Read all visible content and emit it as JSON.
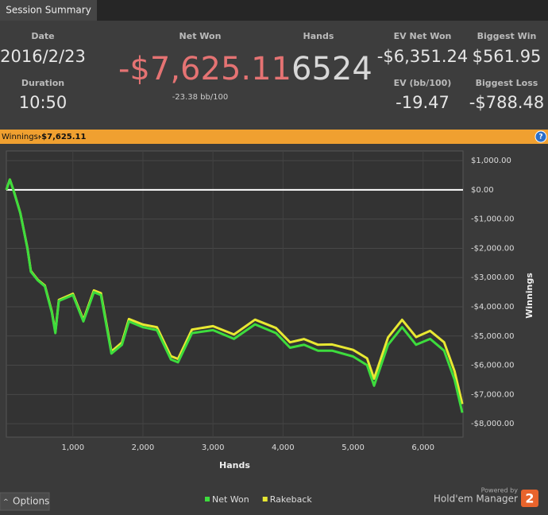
{
  "tab": "Session Summary",
  "stats": {
    "date_label": "Date",
    "date": "2016/2/23",
    "duration_label": "Duration",
    "duration": "10:50",
    "net_won_label": "Net Won",
    "net_won": "-$7,625.11",
    "net_won_bb": "-23.38 bb/100",
    "hands_label": "Hands",
    "hands": "6524",
    "ev_net_won_label": "EV Net Won",
    "ev_net_won": "-$6,351.24",
    "biggest_win_label": "Biggest Win",
    "biggest_win": "$561.95",
    "ev_bb_label": "EV (bb/100)",
    "ev_bb": "-19.47",
    "biggest_loss_label": "Biggest Loss",
    "biggest_loss": "-$788.48"
  },
  "winnings_bar": {
    "label": "Winnings:",
    "value": "-$7,625.11",
    "help": "?"
  },
  "chart_data": {
    "type": "line",
    "xlabel": "Hands",
    "ylabel": "Winnings",
    "x": [
      50,
      100,
      150,
      250,
      350,
      400,
      500,
      600,
      700,
      750,
      800,
      1000,
      1150,
      1300,
      1400,
      1550,
      1700,
      1800,
      2000,
      2200,
      2400,
      2500,
      2700,
      3000,
      3300,
      3600,
      3900,
      4100,
      4300,
      4500,
      4700,
      5000,
      5200,
      5300,
      5500,
      5700,
      5900,
      6100,
      6300,
      6450,
      6560
    ],
    "series": [
      {
        "name": "Rakeback",
        "color": "#e8e832",
        "values": [
          0,
          355,
          5,
          -790,
          -1985,
          -2780,
          -3080,
          -3275,
          -4170,
          -4865,
          -3765,
          -3555,
          -4450,
          -3440,
          -3535,
          -5530,
          -5225,
          -4420,
          -4610,
          -4700,
          -5690,
          -5785,
          -4780,
          -4665,
          -4950,
          -4440,
          -4725,
          -5215,
          -5105,
          -5300,
          -5290,
          -5475,
          -5765,
          -6460,
          -5050,
          -4445,
          -5035,
          -4825,
          -5215,
          -6210,
          -7330
        ]
      },
      {
        "name": "Net Won",
        "color": "#3ddc3d",
        "values": [
          0,
          350,
          0,
          -800,
          -2000,
          -2800,
          -3100,
          -3300,
          -4200,
          -4900,
          -3800,
          -3600,
          -4500,
          -3500,
          -3600,
          -5600,
          -5300,
          -4500,
          -4700,
          -4800,
          -5800,
          -5900,
          -4900,
          -4800,
          -5100,
          -4600,
          -4900,
          -5400,
          -5300,
          -5500,
          -5500,
          -5700,
          -6000,
          -6700,
          -5300,
          -4700,
          -5300,
          -5100,
          -5500,
          -6500,
          -7625.11
        ]
      }
    ],
    "legend_order": [
      "Net Won",
      "Rakeback"
    ],
    "xlim": [
      50,
      6570
    ],
    "ylim": [
      -8460,
      1330
    ],
    "xticks": [
      {
        "value": 1000,
        "label": "1,000"
      },
      {
        "value": 2000,
        "label": "2,000"
      },
      {
        "value": 3000,
        "label": "3,000"
      },
      {
        "value": 4000,
        "label": "4,000"
      },
      {
        "value": 5000,
        "label": "5,000"
      },
      {
        "value": 6000,
        "label": "6,000"
      }
    ],
    "yticks": [
      {
        "value": 1000,
        "label": "$1,000.00"
      },
      {
        "value": 0,
        "label": "$0.00"
      },
      {
        "value": -1000,
        "label": "-$1,000.00"
      },
      {
        "value": -2000,
        "label": "-$2,000.00"
      },
      {
        "value": -3000,
        "label": "-$3,000.00"
      },
      {
        "value": -4000,
        "label": "-$4,000.00"
      },
      {
        "value": -5000,
        "label": "-$5,000.00"
      },
      {
        "value": -6000,
        "label": "-$6,000.00"
      },
      {
        "value": -7000,
        "label": "-$7,000.00"
      },
      {
        "value": -8000,
        "label": "-$8,000.00"
      }
    ],
    "grid": true
  },
  "footer": {
    "options": "Options",
    "powered_by": "Powered by",
    "brand": "Hold'em Manager",
    "logo": "2"
  }
}
